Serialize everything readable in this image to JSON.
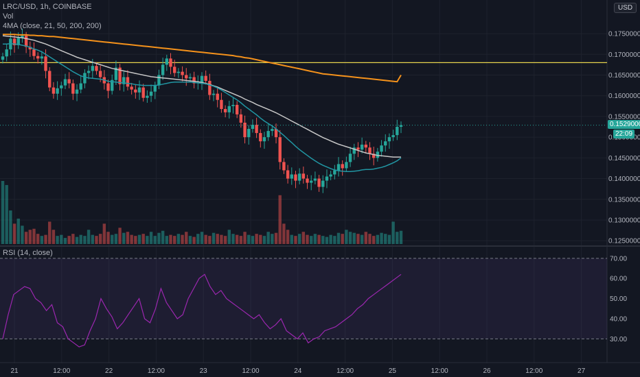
{
  "header": {
    "symbol_line": "LRC/USD, 1h, COINBASE",
    "volume_label": "Vol",
    "ma_label": "4MA (close, 21, 50, 200, 200)",
    "currency_button": "USD"
  },
  "rsi": {
    "label": "RSI (14, close)",
    "upper": 70,
    "lower": 30
  },
  "price_tags": {
    "last_price": "0.15290000",
    "countdown": "22:09"
  },
  "colors": {
    "background": "#131722",
    "bull": "#26a69a",
    "bear": "#ef5350",
    "vol_bull": "#26a69a80",
    "vol_bear": "#ef535080",
    "ma_fast": "#2196a3",
    "ma_mid": "#c7c7c7",
    "ma_slow": "#f5921b",
    "hline": "#e8d44d",
    "rsi_line": "#9c27b0",
    "rsi_band": "#7e57c21a"
  },
  "chart_data": {
    "type": "candlestick",
    "price_axis_ticks": [
      "0.12500000",
      "0.13000000",
      "0.13500000",
      "0.14000000",
      "0.14500000",
      "0.15000000",
      "0.15500000",
      "0.16000000",
      "0.16500000",
      "0.17000000",
      "0.17500000"
    ],
    "price_range": [
      0.1242,
      0.1818
    ],
    "time_axis_ticks": [
      "21",
      "12:00",
      "22",
      "12:00",
      "23",
      "12:00",
      "24",
      "12:00",
      "25",
      "12:00",
      "26",
      "12:00",
      "27"
    ],
    "horizontal_line": 0.168,
    "close_prices": [
      0.1695,
      0.1712,
      0.1738,
      0.1722,
      0.174,
      0.1745,
      0.1718,
      0.1712,
      0.1696,
      0.169,
      0.1695,
      0.166,
      0.162,
      0.1605,
      0.1618,
      0.1625,
      0.164,
      0.163,
      0.1605,
      0.1615,
      0.163,
      0.1655,
      0.166,
      0.1672,
      0.166,
      0.1645,
      0.163,
      0.1612,
      0.1638,
      0.1668,
      0.1628,
      0.1645,
      0.1622,
      0.1615,
      0.1608,
      0.162,
      0.1595,
      0.16,
      0.161,
      0.1625,
      0.165,
      0.1675,
      0.169,
      0.167,
      0.1655,
      0.1658,
      0.165,
      0.1642,
      0.1645,
      0.163,
      0.1632,
      0.1648,
      0.1636,
      0.1602,
      0.1605,
      0.159,
      0.1568,
      0.156,
      0.1575,
      0.1578,
      0.1555,
      0.1535,
      0.15,
      0.152,
      0.153,
      0.151,
      0.149,
      0.15,
      0.1515,
      0.152,
      0.15,
      0.144,
      0.142,
      0.14,
      0.141,
      0.1395,
      0.1412,
      0.14,
      0.139,
      0.1395,
      0.14,
      0.138,
      0.1395,
      0.1405,
      0.141,
      0.142,
      0.1435,
      0.1425,
      0.144,
      0.146,
      0.1475,
      0.147,
      0.1482,
      0.1475,
      0.146,
      0.145,
      0.1465,
      0.148,
      0.149,
      0.15,
      0.1505,
      0.1525,
      0.1529
    ],
    "ma21": [
      0.1725,
      0.1725,
      0.1726,
      0.1725,
      0.1724,
      0.1722,
      0.172,
      0.1717,
      0.1713,
      0.171,
      0.1706,
      0.17,
      0.1694,
      0.1688,
      0.1682,
      0.1676,
      0.167,
      0.1664,
      0.1658,
      0.1653,
      0.1648,
      0.1645,
      0.1643,
      0.1642,
      0.1641,
      0.164,
      0.1638,
      0.1635,
      0.1634,
      0.1633,
      0.1632,
      0.1631,
      0.163,
      0.1629,
      0.1627,
      0.1626,
      0.1625,
      0.1625,
      0.1625,
      0.1625,
      0.1626,
      0.1628,
      0.163,
      0.1632,
      0.1633,
      0.1633,
      0.1633,
      0.1633,
      0.1633,
      0.1632,
      0.1631,
      0.163,
      0.1629,
      0.1626,
      0.1623,
      0.1619,
      0.1614,
      0.1608,
      0.1602,
      0.1596,
      0.159,
      0.1583,
      0.1575,
      0.1568,
      0.1561,
      0.1554,
      0.1546,
      0.1539,
      0.1533,
      0.1527,
      0.152,
      0.1512,
      0.1504,
      0.1495,
      0.1487,
      0.1478,
      0.147,
      0.1463,
      0.1456,
      0.1449,
      0.1443,
      0.1437,
      0.1432,
      0.1428,
      0.1424,
      0.1421,
      0.1419,
      0.1418,
      0.1417,
      0.1417,
      0.1418,
      0.1419,
      0.1421,
      0.1422,
      0.1422,
      0.1423,
      0.1425,
      0.1427,
      0.143,
      0.1434,
      0.1438,
      0.1443,
      0.145
    ],
    "ma50": [
      0.1745,
      0.1744,
      0.1743,
      0.1742,
      0.1741,
      0.174,
      0.1738,
      0.1736,
      0.1734,
      0.1731,
      0.1728,
      0.1725,
      0.1721,
      0.1717,
      0.1713,
      0.1709,
      0.1705,
      0.1701,
      0.1697,
      0.1693,
      0.169,
      0.1687,
      0.1684,
      0.1681,
      0.1678,
      0.1675,
      0.1672,
      0.1669,
      0.1666,
      0.1664,
      0.1662,
      0.166,
      0.1658,
      0.1656,
      0.1654,
      0.1652,
      0.165,
      0.1648,
      0.1646,
      0.1645,
      0.1644,
      0.1643,
      0.1642,
      0.1641,
      0.164,
      0.1639,
      0.1638,
      0.1637,
      0.1636,
      0.1635,
      0.1634,
      0.1632,
      0.163,
      0.1627,
      0.1624,
      0.1621,
      0.1617,
      0.1613,
      0.1609,
      0.1605,
      0.1601,
      0.1597,
      0.1592,
      0.1588,
      0.1584,
      0.1579,
      0.1575,
      0.1571,
      0.1567,
      0.1563,
      0.1559,
      0.1554,
      0.1549,
      0.1544,
      0.1539,
      0.1534,
      0.1529,
      0.1524,
      0.1519,
      0.1514,
      0.1509,
      0.1504,
      0.1499,
      0.1495,
      0.1491,
      0.1487,
      0.1483,
      0.148,
      0.1477,
      0.1474,
      0.1471,
      0.1468,
      0.1465,
      0.1462,
      0.146,
      0.1458,
      0.1456,
      0.1455,
      0.1454,
      0.1453,
      0.1452,
      0.1452,
      0.1452
    ],
    "ma200": [
      0.1748,
      0.1748,
      0.1748,
      0.1748,
      0.1747,
      0.1747,
      0.1747,
      0.1746,
      0.1746,
      0.1745,
      0.1745,
      0.1744,
      0.1743,
      0.1743,
      0.1742,
      0.1741,
      0.174,
      0.1739,
      0.1738,
      0.1737,
      0.1736,
      0.1735,
      0.1734,
      0.1733,
      0.1732,
      0.1731,
      0.173,
      0.1729,
      0.1728,
      0.1727,
      0.1726,
      0.1725,
      0.1724,
      0.1723,
      0.1722,
      0.1721,
      0.172,
      0.1719,
      0.1718,
      0.1717,
      0.1716,
      0.1715,
      0.1714,
      0.1713,
      0.1712,
      0.1711,
      0.171,
      0.1709,
      0.1708,
      0.1707,
      0.1706,
      0.1705,
      0.1704,
      0.1703,
      0.1702,
      0.1701,
      0.17,
      0.1699,
      0.1698,
      0.1697,
      0.1695,
      0.1694,
      0.1692,
      0.1691,
      0.1689,
      0.1687,
      0.1685,
      0.1683,
      0.1681,
      0.1679,
      0.1677,
      0.1675,
      0.1673,
      0.1671,
      0.1669,
      0.1667,
      0.1665,
      0.1663,
      0.1661,
      0.1659,
      0.1657,
      0.1655,
      0.1653,
      0.1652,
      0.1651,
      0.165,
      0.1649,
      0.1648,
      0.1647,
      0.1646,
      0.1645,
      0.1644,
      0.1643,
      0.1642,
      0.1641,
      0.164,
      0.1639,
      0.1638,
      0.1637,
      0.1636,
      0.1635,
      0.1634,
      0.165
    ],
    "volume": [
      62,
      58,
      33,
      20,
      25,
      18,
      12,
      14,
      15,
      10,
      8,
      9,
      22,
      14,
      8,
      9,
      6,
      8,
      10,
      7,
      9,
      8,
      14,
      9,
      8,
      10,
      20,
      12,
      9,
      10,
      16,
      11,
      12,
      9,
      8,
      9,
      10,
      8,
      12,
      8,
      11,
      13,
      8,
      9,
      8,
      10,
      9,
      12,
      8,
      7,
      10,
      12,
      9,
      8,
      11,
      10,
      9,
      8,
      14,
      10,
      9,
      8,
      12,
      9,
      8,
      10,
      9,
      8,
      12,
      10,
      11,
      48,
      20,
      14,
      9,
      8,
      10,
      12,
      9,
      8,
      10,
      9,
      8,
      7,
      9,
      8,
      11,
      10,
      14,
      12,
      11,
      10,
      9,
      12,
      10,
      8,
      9,
      11,
      10,
      9,
      22,
      12,
      13
    ],
    "rsi_range": [
      24,
      73
    ],
    "rsi_axis_ticks": [
      "30.00",
      "40.00",
      "50.00",
      "60.00",
      "70.00"
    ],
    "rsi_values": [
      30,
      42,
      52,
      54,
      56,
      55,
      50,
      48,
      44,
      47,
      38,
      36,
      30,
      28,
      26,
      27,
      34,
      40,
      50,
      45,
      41,
      35,
      38,
      42,
      46,
      50,
      40,
      38,
      45,
      55,
      48,
      44,
      40,
      42,
      50,
      55,
      60,
      62,
      56,
      52,
      54,
      50,
      48,
      46,
      44,
      42,
      40,
      42,
      38,
      35,
      37,
      40,
      34,
      32,
      30,
      33,
      28,
      30,
      31,
      34,
      35,
      36,
      38,
      40,
      42,
      45,
      47,
      50,
      52,
      54,
      56,
      58,
      60,
      62
    ]
  }
}
